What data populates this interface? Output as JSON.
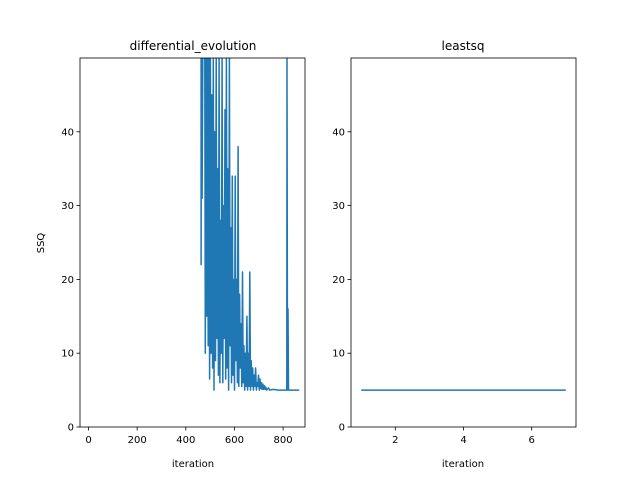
{
  "chart_data": [
    {
      "type": "line",
      "title": "differential_evolution",
      "xlabel": "iteration",
      "ylabel": "SSQ",
      "xlim": [
        -35,
        890
      ],
      "ylim": [
        0,
        50
      ],
      "xticks": [
        0,
        200,
        400,
        600,
        800
      ],
      "yticks": [
        0,
        10,
        20,
        30,
        40
      ],
      "grid": false,
      "legend": "none",
      "series": [
        {
          "color": "#1f77b4",
          "segments": [
            [
              [
                463,
                50
              ],
              [
                463,
                22
              ],
              [
                464,
                50
              ],
              [
                467,
                31
              ],
              [
                470,
                50
              ],
              [
                478,
                50
              ],
              [
                480,
                10
              ],
              [
                483,
                50
              ],
              [
                486,
                15
              ],
              [
                489,
                50
              ],
              [
                492,
                11
              ],
              [
                495,
                50
              ],
              [
                498,
                6.5
              ],
              [
                501,
                50
              ],
              [
                504,
                10
              ],
              [
                507,
                45
              ],
              [
                510,
                8
              ],
              [
                513,
                50
              ],
              [
                516,
                5
              ],
              [
                519,
                40
              ],
              [
                522,
                9
              ],
              [
                525,
                50
              ],
              [
                528,
                12
              ],
              [
                531,
                35
              ],
              [
                534,
                7
              ],
              [
                537,
                50
              ],
              [
                540,
                6
              ],
              [
                543,
                28
              ],
              [
                546,
                10
              ],
              [
                549,
                50
              ],
              [
                552,
                6
              ],
              [
                555,
                30
              ],
              [
                558,
                12
              ],
              [
                561,
                43
              ],
              [
                564,
                6.5
              ],
              [
                567,
                50
              ],
              [
                570,
                8
              ],
              [
                573,
                35
              ],
              [
                576,
                5
              ],
              [
                579,
                50
              ],
              [
                582,
                11
              ],
              [
                585,
                27
              ],
              [
                588,
                6
              ],
              [
                591,
                34
              ],
              [
                594,
                7
              ],
              [
                597,
                20
              ],
              [
                600,
                5
              ],
              [
                603,
                34
              ],
              [
                606,
                9
              ],
              [
                609,
                20
              ],
              [
                612,
                6
              ],
              [
                615,
                38
              ],
              [
                618,
                5.5
              ],
              [
                621,
                18
              ],
              [
                624,
                8
              ],
              [
                627,
                14
              ],
              [
                630,
                5.5
              ],
              [
                633,
                21
              ],
              [
                636,
                6
              ],
              [
                639,
                11
              ],
              [
                642,
                5
              ],
              [
                645,
                10
              ],
              [
                648,
                5.5
              ],
              [
                651,
                15
              ],
              [
                654,
                5
              ],
              [
                657,
                10
              ],
              [
                660,
                5.5
              ],
              [
                663,
                21
              ],
              [
                666,
                5
              ],
              [
                669,
                9
              ],
              [
                672,
                5.5
              ],
              [
                675,
                8
              ],
              [
                678,
                5
              ],
              [
                681,
                7
              ],
              [
                684,
                5.5
              ],
              [
                687,
                8
              ],
              [
                690,
                5
              ],
              [
                693,
                6
              ],
              [
                696,
                5.5
              ],
              [
                699,
                7
              ],
              [
                702,
                5
              ],
              [
                705,
                6.5
              ],
              [
                708,
                5.2
              ],
              [
                711,
                6
              ],
              [
                714,
                5.1
              ],
              [
                717,
                5.8
              ],
              [
                720,
                5.1
              ],
              [
                723,
                5.6
              ],
              [
                726,
                5.1
              ],
              [
                729,
                5.4
              ],
              [
                732,
                5.0
              ],
              [
                740,
                5.3
              ],
              [
                745,
                5.0
              ],
              [
                760,
                5.1
              ],
              [
                780,
                5.0
              ],
              [
                800,
                5.0
              ],
              [
                815,
                5.0
              ],
              [
                816,
                50
              ],
              [
                818,
                5.0
              ],
              [
                820,
                16
              ],
              [
                822,
                5.0
              ],
              [
                840,
                5.0
              ],
              [
                866,
                5.0
              ]
            ]
          ]
        }
      ]
    },
    {
      "type": "line",
      "title": "leastsq",
      "xlabel": "iteration",
      "ylabel": "",
      "xlim": [
        0.7,
        7.3
      ],
      "ylim": [
        0,
        50
      ],
      "xticks": [
        2,
        4,
        6
      ],
      "yticks": [
        0,
        10,
        20,
        30,
        40
      ],
      "grid": false,
      "legend": "none",
      "series": [
        {
          "color": "#1f77b4",
          "segments": [
            [
              [
                1,
                5.0
              ],
              [
                2,
                5.0
              ],
              [
                3,
                5.0
              ],
              [
                4,
                5.0
              ],
              [
                5,
                5.0
              ],
              [
                6,
                5.0
              ],
              [
                7,
                5.0
              ]
            ]
          ]
        }
      ]
    }
  ]
}
